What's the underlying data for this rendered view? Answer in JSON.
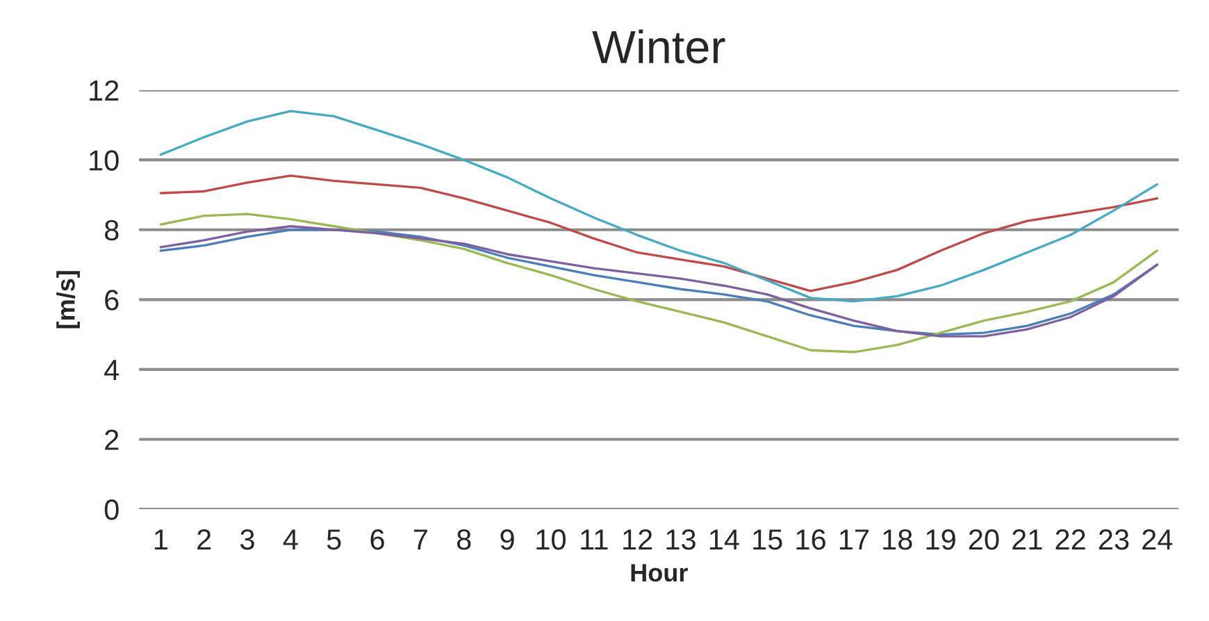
{
  "chart_data": {
    "type": "line",
    "title": "Winter",
    "xlabel": "Hour",
    "ylabel": "[m/s]",
    "categories": [
      "1",
      "2",
      "3",
      "4",
      "5",
      "6",
      "7",
      "8",
      "9",
      "10",
      "11",
      "12",
      "13",
      "14",
      "15",
      "16",
      "17",
      "18",
      "19",
      "20",
      "21",
      "22",
      "23",
      "24"
    ],
    "ylim": [
      0,
      12
    ],
    "yticks": [
      0,
      2,
      4,
      6,
      8,
      10,
      12
    ],
    "grid": "y",
    "marker": "none",
    "line_style": "solid",
    "series": [
      {
        "color": "#4a7ebb",
        "values": [
          7.4,
          7.55,
          7.8,
          8.0,
          8.0,
          7.95,
          7.8,
          7.55,
          7.2,
          6.95,
          6.7,
          6.5,
          6.3,
          6.15,
          5.95,
          5.55,
          5.25,
          5.1,
          5.0,
          5.05,
          5.25,
          5.6,
          6.15,
          7.0
        ]
      },
      {
        "color": "#be4b48",
        "values": [
          9.05,
          9.1,
          9.35,
          9.55,
          9.4,
          9.3,
          9.2,
          8.9,
          8.55,
          8.2,
          7.75,
          7.35,
          7.15,
          6.95,
          6.6,
          6.25,
          6.5,
          6.85,
          7.4,
          7.9,
          8.25,
          8.45,
          8.65,
          8.9
        ]
      },
      {
        "color": "#98b954",
        "values": [
          8.15,
          8.4,
          8.45,
          8.3,
          8.1,
          7.9,
          7.7,
          7.45,
          7.05,
          6.7,
          6.3,
          5.95,
          5.65,
          5.35,
          4.95,
          4.55,
          4.5,
          4.7,
          5.05,
          5.4,
          5.65,
          5.95,
          6.5,
          7.4
        ]
      },
      {
        "color": "#7d60a0",
        "values": [
          7.5,
          7.7,
          7.95,
          8.1,
          8.0,
          7.9,
          7.75,
          7.6,
          7.3,
          7.1,
          6.9,
          6.75,
          6.6,
          6.4,
          6.15,
          5.75,
          5.4,
          5.1,
          4.95,
          4.95,
          5.15,
          5.5,
          6.1,
          7.0
        ]
      },
      {
        "color": "#46aac5",
        "values": [
          10.15,
          10.65,
          11.1,
          11.4,
          11.25,
          10.85,
          10.45,
          10.0,
          9.5,
          8.9,
          8.35,
          7.85,
          7.4,
          7.05,
          6.55,
          6.05,
          5.95,
          6.1,
          6.4,
          6.85,
          7.35,
          7.85,
          8.55,
          9.3
        ]
      }
    ]
  }
}
